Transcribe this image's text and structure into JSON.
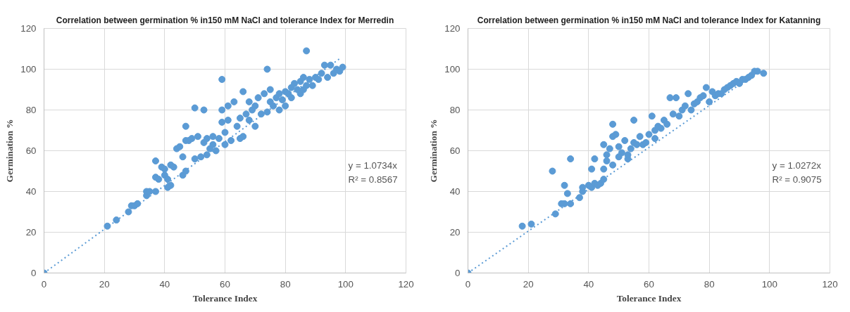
{
  "chart_data": [
    {
      "type": "scatter",
      "title": "Correlation between germination % in150 mM NaCl and tolerance Index for Merredin",
      "xlabel": "Tolerance Index",
      "ylabel": "Germination %",
      "xlim": [
        0,
        120
      ],
      "ylim": [
        0,
        120
      ],
      "xticks": [
        0,
        20,
        40,
        60,
        80,
        100,
        120
      ],
      "yticks": [
        0,
        20,
        40,
        60,
        80,
        100,
        120
      ],
      "grid": true,
      "marker": "circle",
      "annotations": [
        "y = 1.0734x",
        "R² = 0.8567"
      ],
      "series": [
        {
          "color": "#5b9bd5",
          "x": [
            0,
            21,
            24,
            28,
            29,
            30,
            31,
            34,
            34,
            35,
            37,
            37,
            37,
            38,
            39,
            40,
            40,
            41,
            41,
            42,
            42,
            43,
            44,
            45,
            46,
            46,
            47,
            47,
            47,
            48,
            49,
            50,
            50,
            51,
            52,
            53,
            53,
            54,
            54,
            55,
            56,
            56,
            57,
            58,
            59,
            59,
            59,
            60,
            60,
            61,
            61,
            62,
            63,
            64,
            65,
            65,
            66,
            66,
            67,
            68,
            68,
            69,
            70,
            70,
            71,
            72,
            73,
            74,
            74,
            75,
            75,
            76,
            77,
            78,
            78,
            79,
            80,
            80,
            81,
            82,
            82,
            83,
            84,
            85,
            85,
            86,
            86,
            87,
            87,
            88,
            89,
            90,
            91,
            92,
            93,
            94,
            95,
            96,
            97,
            98,
            99
          ],
          "values": [
            0,
            23,
            26,
            30,
            33,
            33,
            34,
            38,
            40,
            40,
            40,
            47,
            55,
            46,
            52,
            51,
            48,
            46,
            42,
            43,
            53,
            52,
            61,
            62,
            48,
            57,
            50,
            65,
            72,
            65,
            66,
            56,
            81,
            67,
            57,
            80,
            64,
            58,
            66,
            61,
            63,
            67,
            60,
            66,
            95,
            80,
            74,
            69,
            63,
            82,
            75,
            65,
            84,
            72,
            76,
            66,
            89,
            67,
            78,
            75,
            84,
            80,
            82,
            72,
            86,
            78,
            88,
            79,
            100,
            84,
            90,
            82,
            86,
            80,
            88,
            85,
            82,
            89,
            88,
            91,
            86,
            93,
            90,
            94,
            88,
            96,
            90,
            109,
            92,
            95,
            92,
            96,
            95,
            98,
            102,
            96,
            102,
            98,
            100,
            99,
            101
          ]
        },
        {
          "type": "line",
          "color": "#5b9bd5",
          "line_style": "dotted",
          "marker": "none",
          "x": [
            0,
            98.5
          ],
          "values": [
            0,
            105.7
          ]
        }
      ]
    },
    {
      "type": "scatter",
      "title": "Correlation between germination % in150 mM NaCl and tolerance Index for Katanning",
      "xlabel": "Tolerance Index",
      "ylabel": "Germination %",
      "xlim": [
        0,
        120
      ],
      "ylim": [
        0,
        120
      ],
      "xticks": [
        0,
        20,
        40,
        60,
        80,
        100,
        120
      ],
      "yticks": [
        0,
        20,
        40,
        60,
        80,
        100,
        120
      ],
      "grid": true,
      "marker": "circle",
      "annotations": [
        "y = 1.0272x",
        "R² = 0.9075"
      ],
      "series": [
        {
          "color": "#5b9bd5",
          "x": [
            0,
            18,
            21,
            28,
            29,
            31,
            32,
            32,
            33,
            34,
            34,
            37,
            38,
            38,
            40,
            41,
            41,
            42,
            42,
            43,
            44,
            45,
            45,
            45,
            46,
            46,
            47,
            48,
            48,
            48,
            49,
            50,
            50,
            51,
            52,
            53,
            53,
            54,
            55,
            55,
            56,
            57,
            58,
            59,
            60,
            61,
            62,
            62,
            63,
            64,
            65,
            66,
            67,
            68,
            69,
            70,
            71,
            72,
            73,
            74,
            75,
            76,
            77,
            78,
            79,
            80,
            81,
            82,
            83,
            84,
            85,
            86,
            87,
            88,
            89,
            90,
            91,
            92,
            93,
            94,
            95,
            96,
            98
          ],
          "values": [
            0,
            23,
            24,
            50,
            29,
            34,
            34,
            43,
            39,
            56,
            34,
            37,
            40,
            42,
            43,
            51,
            42,
            44,
            56,
            43,
            44,
            46,
            51,
            63,
            58,
            55,
            61,
            73,
            53,
            67,
            68,
            62,
            57,
            59,
            65,
            56,
            58,
            61,
            64,
            75,
            63,
            67,
            63,
            64,
            68,
            77,
            66,
            70,
            72,
            71,
            75,
            73,
            86,
            78,
            86,
            77,
            80,
            82,
            88,
            80,
            83,
            84,
            86,
            87,
            91,
            84,
            89,
            87,
            88,
            88,
            90,
            91,
            92,
            93,
            94,
            93,
            95,
            95,
            96,
            97,
            99,
            99,
            98
          ]
        },
        {
          "type": "line",
          "color": "#5b9bd5",
          "line_style": "dotted",
          "marker": "none",
          "x": [
            0,
            96
          ],
          "values": [
            0,
            98.6
          ]
        }
      ]
    }
  ]
}
